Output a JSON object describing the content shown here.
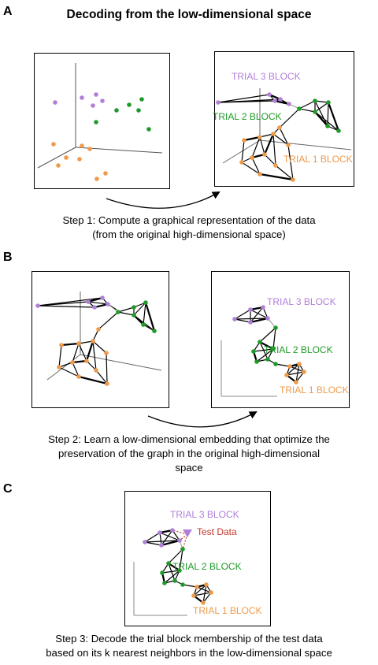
{
  "title": "Decoding from the low-dimensional space",
  "panels": {
    "a": {
      "letter": "A",
      "step": [
        "Step 1: Compute a graphical representation of the data",
        "(from the original high-dimensional space)"
      ]
    },
    "b": {
      "letter": "B",
      "step": [
        "Step 2: Learn a low-dimensional embedding that optimize the",
        "preservation of the graph in the original high-dimensional",
        "space"
      ]
    },
    "c": {
      "letter": "C",
      "step": [
        "Step 3: Decode the trial block membership of the test data",
        "based on its k nearest neighbors in the low-dimensional space"
      ]
    }
  },
  "labels": {
    "trial1": "TRIAL 1 BLOCK",
    "trial2": "TRIAL 2 BLOCK",
    "trial3": "TRIAL 3 BLOCK",
    "test": "Test Data"
  },
  "colors": {
    "trial1": "#ef9a4a",
    "trial2": "#1e9a28",
    "trial3": "#b07fd8",
    "test": "#c0392b",
    "test_marker": "#b07fd8"
  }
}
